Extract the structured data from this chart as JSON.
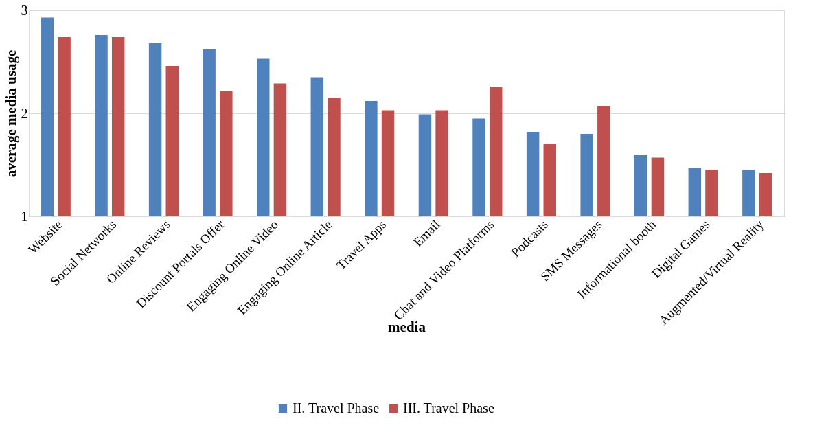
{
  "chart_data": {
    "type": "bar",
    "xlabel": "media",
    "ylabel": "average media usage",
    "categories": [
      "Website",
      "Social Networks",
      "Online Reviews",
      "Discount Portals Offer",
      "Engaging Online Video",
      "Engaging Online Article",
      "Travel Apps",
      "Email",
      "Chat and Video Platforms",
      "Podcasts",
      "SMS Messages",
      "Informational booth",
      "Digital Games",
      "Augmented/Virtual Reality"
    ],
    "series": [
      {
        "name": "II. Travel Phase",
        "color": "#4f81bd",
        "values": [
          2.93,
          2.76,
          2.68,
          2.62,
          2.53,
          2.35,
          2.12,
          1.99,
          1.95,
          1.82,
          1.8,
          1.6,
          1.47,
          1.45
        ]
      },
      {
        "name": "III. Travel Phase",
        "color": "#c0504d",
        "values": [
          2.74,
          2.74,
          2.46,
          2.22,
          2.29,
          2.15,
          2.03,
          2.03,
          2.26,
          1.7,
          2.07,
          1.57,
          1.45,
          1.42
        ]
      }
    ],
    "ylim": [
      1,
      3
    ],
    "yticks": [
      1,
      2,
      3
    ],
    "grid": "y",
    "legend": "bottom"
  }
}
